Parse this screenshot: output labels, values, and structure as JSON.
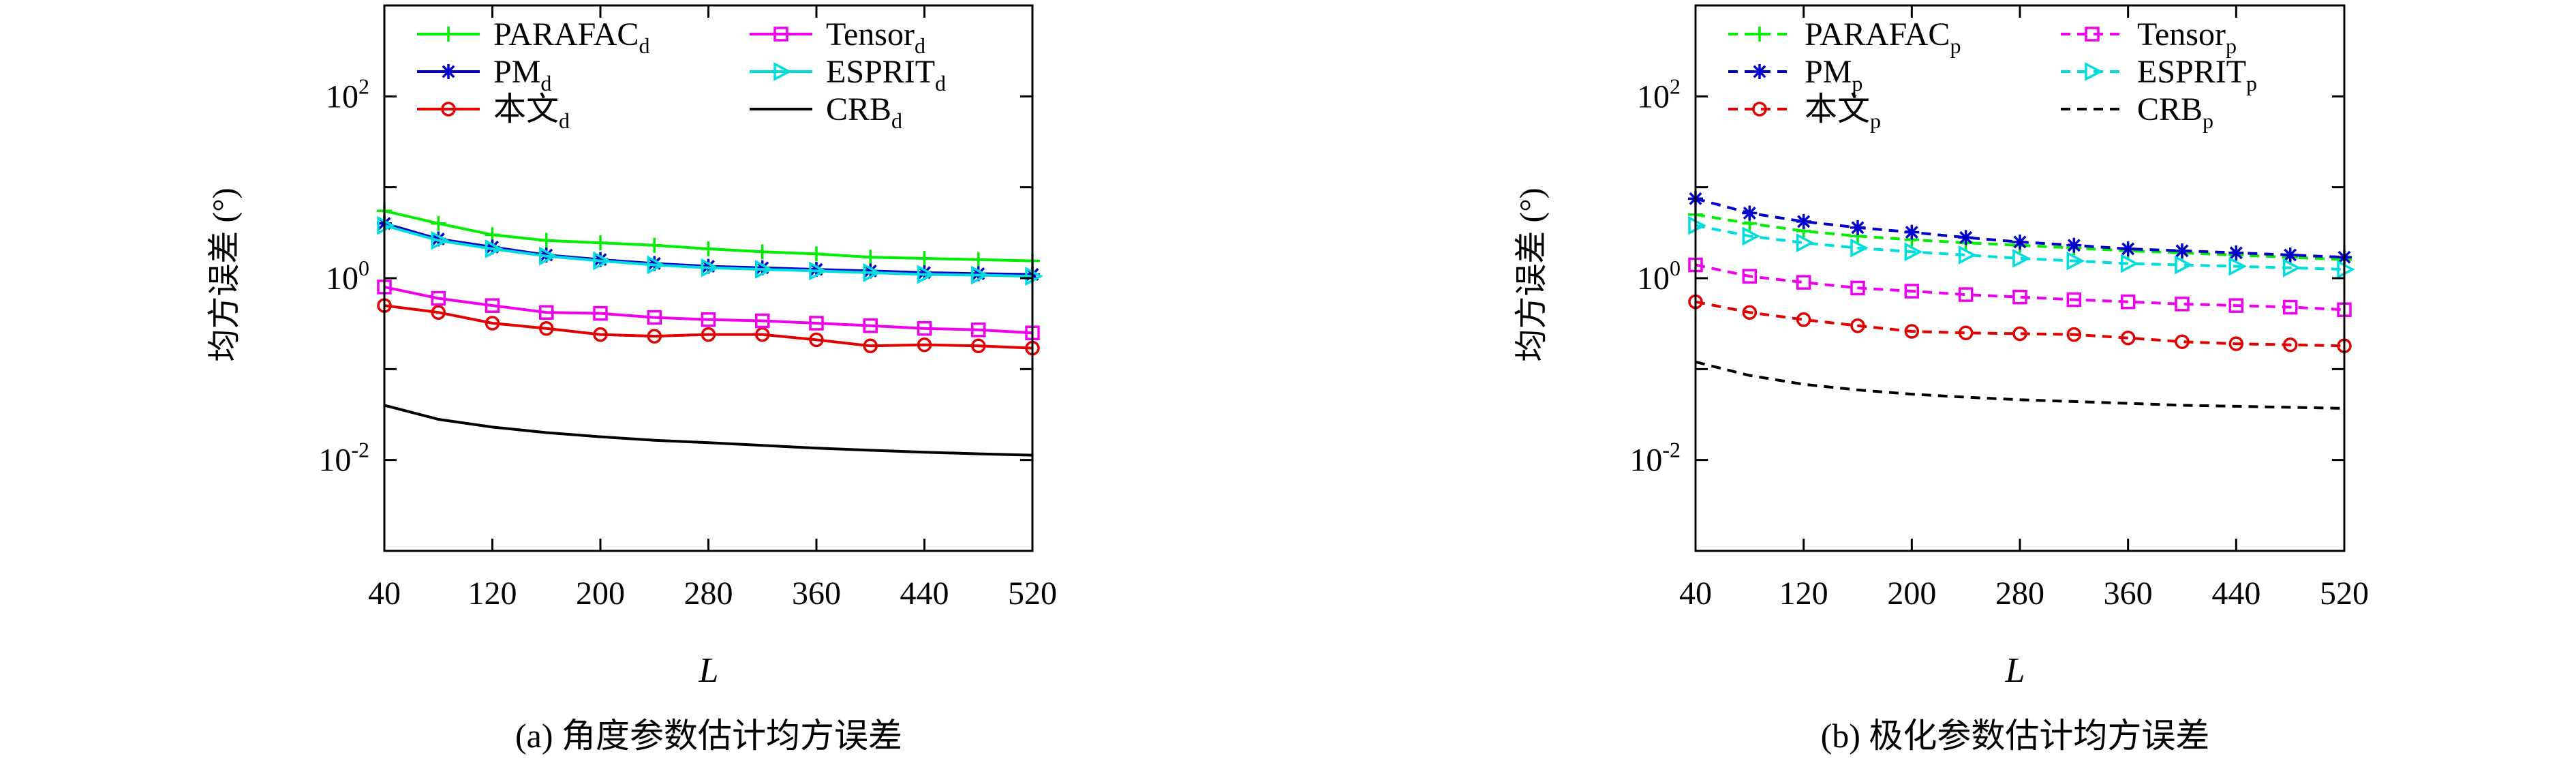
{
  "chart_data": [
    {
      "type": "line",
      "caption": "(a) 角度参数估计均方误差",
      "xlabel": "L",
      "ylabel": "均方误差 (°)",
      "yscale": "log",
      "xlim": [
        40,
        520
      ],
      "ylim": [
        0.001,
        1000
      ],
      "xticks": [
        40,
        120,
        200,
        280,
        360,
        440,
        520
      ],
      "yticks": [
        {
          "value": 0.01,
          "base": "10",
          "exp": "-2"
        },
        {
          "value": 1,
          "base": "10",
          "exp": "0"
        },
        {
          "value": 100,
          "base": "10",
          "exp": "2"
        }
      ],
      "grid": false,
      "legend_position": "top",
      "x": [
        40,
        80,
        120,
        160,
        200,
        240,
        280,
        320,
        360,
        400,
        440,
        480,
        520
      ],
      "series": [
        {
          "name": "PARAFAC",
          "sub": "d",
          "color": "#00ee00",
          "marker": "plus",
          "dashed": false,
          "values": [
            5.5,
            4.0,
            3.0,
            2.6,
            2.45,
            2.3,
            2.1,
            1.95,
            1.85,
            1.7,
            1.65,
            1.6,
            1.55
          ]
        },
        {
          "name": "PM",
          "sub": "d",
          "color": "#0000cc",
          "marker": "star",
          "dashed": false,
          "values": [
            4.0,
            2.7,
            2.2,
            1.8,
            1.6,
            1.45,
            1.35,
            1.3,
            1.25,
            1.2,
            1.15,
            1.12,
            1.1
          ]
        },
        {
          "name": "本文",
          "sub": "d",
          "color": "#e00000",
          "marker": "circle",
          "dashed": false,
          "values": [
            0.5,
            0.42,
            0.32,
            0.28,
            0.24,
            0.23,
            0.24,
            0.24,
            0.21,
            0.18,
            0.185,
            0.18,
            0.17
          ]
        },
        {
          "name": "Tensor",
          "sub": "d",
          "color": "#ee00ee",
          "marker": "square",
          "dashed": false,
          "values": [
            0.8,
            0.6,
            0.5,
            0.42,
            0.41,
            0.37,
            0.35,
            0.34,
            0.32,
            0.3,
            0.28,
            0.27,
            0.25
          ]
        },
        {
          "name": "ESPRIT",
          "sub": "d",
          "color": "#00dddd",
          "marker": "triangle-right",
          "dashed": false,
          "values": [
            3.8,
            2.6,
            2.1,
            1.75,
            1.55,
            1.4,
            1.3,
            1.25,
            1.2,
            1.15,
            1.1,
            1.08,
            1.05
          ]
        },
        {
          "name": "CRB",
          "sub": "d",
          "color": "#000000",
          "marker": "none",
          "dashed": false,
          "values": [
            0.04,
            0.028,
            0.023,
            0.02,
            0.018,
            0.0165,
            0.0155,
            0.0145,
            0.0135,
            0.0128,
            0.0122,
            0.0117,
            0.0113
          ]
        }
      ]
    },
    {
      "type": "line",
      "caption": "(b) 极化参数估计均方误差",
      "xlabel": "L",
      "ylabel": "均方误差 (°)",
      "yscale": "log",
      "xlim": [
        40,
        520
      ],
      "ylim": [
        0.001,
        1000
      ],
      "xticks": [
        40,
        120,
        200,
        280,
        360,
        440,
        520
      ],
      "yticks": [
        {
          "value": 0.01,
          "base": "10",
          "exp": "-2"
        },
        {
          "value": 1,
          "base": "10",
          "exp": "0"
        },
        {
          "value": 100,
          "base": "10",
          "exp": "2"
        }
      ],
      "grid": false,
      "legend_position": "top",
      "x": [
        40,
        80,
        120,
        160,
        200,
        240,
        280,
        320,
        360,
        400,
        440,
        480,
        520
      ],
      "series": [
        {
          "name": "PARAFAC",
          "sub": "p",
          "color": "#00ee00",
          "marker": "plus",
          "dashed": true,
          "values": [
            5.0,
            4.0,
            3.3,
            2.9,
            2.65,
            2.45,
            2.3,
            2.15,
            2.0,
            1.9,
            1.8,
            1.7,
            1.6
          ]
        },
        {
          "name": "PM",
          "sub": "p",
          "color": "#0000cc",
          "marker": "star",
          "dashed": true,
          "values": [
            7.5,
            5.2,
            4.2,
            3.6,
            3.2,
            2.8,
            2.5,
            2.3,
            2.1,
            2.0,
            1.9,
            1.8,
            1.7
          ]
        },
        {
          "name": "本文",
          "sub": "p",
          "color": "#e00000",
          "marker": "circle",
          "dashed": true,
          "values": [
            0.55,
            0.42,
            0.35,
            0.3,
            0.26,
            0.25,
            0.245,
            0.24,
            0.22,
            0.2,
            0.19,
            0.185,
            0.18
          ]
        },
        {
          "name": "Tensor",
          "sub": "p",
          "color": "#ee00ee",
          "marker": "square",
          "dashed": true,
          "values": [
            1.4,
            1.05,
            0.9,
            0.78,
            0.72,
            0.66,
            0.62,
            0.58,
            0.55,
            0.52,
            0.5,
            0.48,
            0.45
          ]
        },
        {
          "name": "ESPRIT",
          "sub": "p",
          "color": "#00dddd",
          "marker": "triangle-right",
          "dashed": true,
          "values": [
            3.8,
            2.9,
            2.45,
            2.15,
            1.95,
            1.8,
            1.65,
            1.55,
            1.45,
            1.4,
            1.35,
            1.3,
            1.25
          ]
        },
        {
          "name": "CRB",
          "sub": "p",
          "color": "#000000",
          "marker": "none",
          "dashed": true,
          "values": [
            0.12,
            0.085,
            0.068,
            0.059,
            0.053,
            0.049,
            0.046,
            0.044,
            0.042,
            0.04,
            0.039,
            0.038,
            0.037
          ]
        }
      ]
    }
  ]
}
